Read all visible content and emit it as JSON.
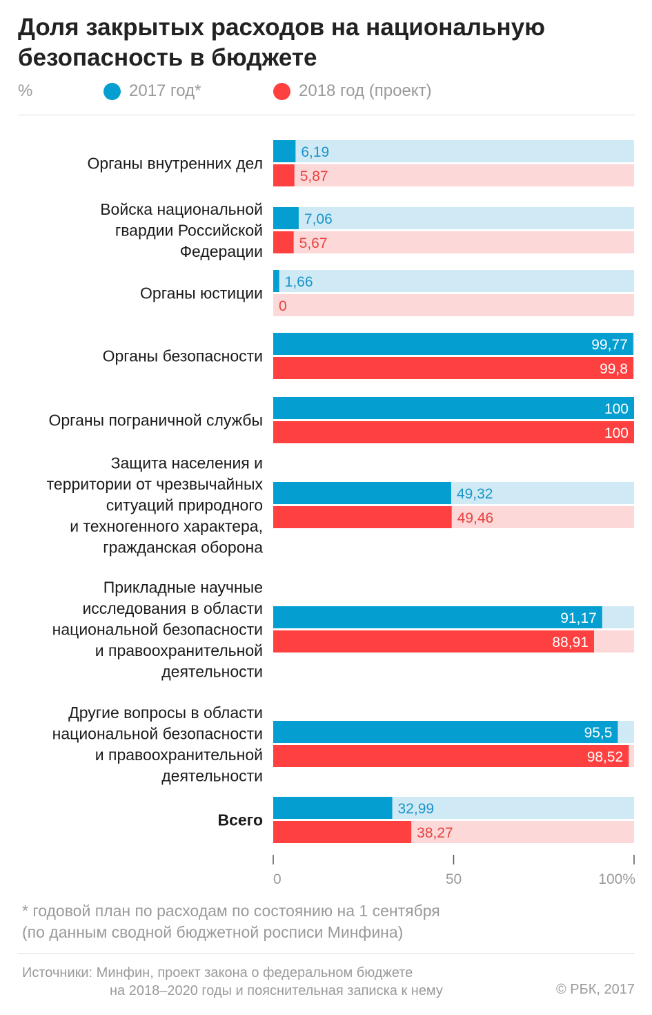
{
  "title": "Доля закрытых расходов на национальную безопасность в бюджете",
  "unit": "%",
  "legend": [
    {
      "label": "2017 год*",
      "color": "#049fd0"
    },
    {
      "label": "2018 год (проект)",
      "color": "#ff4040"
    }
  ],
  "colors": {
    "series_2017": "#049fd0",
    "series_2017_bg": "#cfeaf4",
    "series_2018": "#ff4040",
    "series_2018_bg": "#fcd8d8",
    "label_2017": "#1b94c9",
    "label_2018": "#e8423f",
    "axis_text": "#9a9a9a"
  },
  "chart_data": {
    "type": "bar",
    "orientation": "horizontal",
    "title": "Доля закрытых расходов на национальную безопасность в бюджете",
    "xlim": [
      0,
      100
    ],
    "xticks": [
      "0",
      "50",
      "100%"
    ],
    "grid": false,
    "legend_position": "top",
    "categories": [
      [
        "Органы внутренних дел"
      ],
      [
        "Войска национальной",
        "гвардии Российской",
        "Федерации"
      ],
      [
        "Органы юстиции"
      ],
      [
        "Органы безопасности"
      ],
      [
        "Органы пограничной службы"
      ],
      [
        "Защита населения и",
        "территории от чрезвычайных",
        "ситуаций природного",
        "и техногенного характера,",
        "гражданская оборона"
      ],
      [
        "Прикладные научные",
        "исследования в области",
        "национальной безопасности",
        "и правоохранительной",
        "деятельности"
      ],
      [
        "Другие вопросы в области",
        "национальной безопасности",
        "и правоохранительной",
        "деятельности"
      ],
      [
        "Всего"
      ]
    ],
    "bold_categories": [
      false,
      false,
      false,
      false,
      false,
      false,
      false,
      false,
      true
    ],
    "series": [
      {
        "name": "2017 год*",
        "values": [
          6.19,
          7.06,
          1.66,
          99.77,
          100,
          49.32,
          91.17,
          95.5,
          32.99
        ],
        "labels": [
          "6,19",
          "7,06",
          "1,66",
          "99,77",
          "100",
          "49,32",
          "91,17",
          "95,5",
          "32,99"
        ]
      },
      {
        "name": "2018 год (проект)",
        "values": [
          5.87,
          5.67,
          0,
          99.8,
          100,
          49.46,
          88.91,
          98.52,
          38.27
        ],
        "labels": [
          "5,87",
          "5,67",
          "0",
          "99,8",
          "100",
          "49,46",
          "88,91",
          "98,52",
          "38,27"
        ]
      }
    ]
  },
  "footnote": [
    "* годовой план по расходам по состоянию на 1 сентября",
    "(по данным сводной бюджетной росписи Минфина)"
  ],
  "sources": [
    "Источники: Минфин, проект закона о федеральном бюджете",
    "на 2018–2020 годы и пояснительная записка к нему"
  ],
  "copyright": "© РБК, 2017"
}
